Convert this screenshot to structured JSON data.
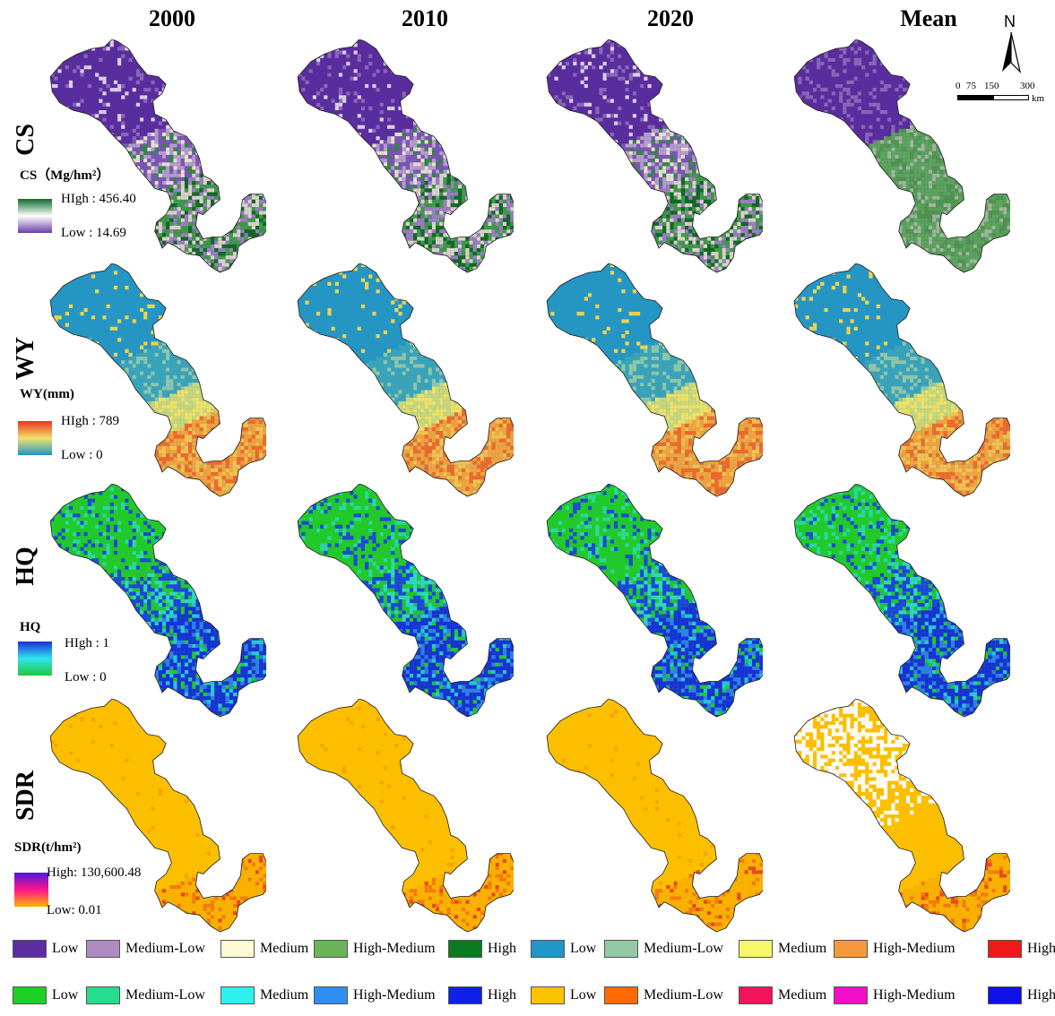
{
  "columns": [
    "2000",
    "2010",
    "2020",
    "Mean"
  ],
  "rows": [
    "CS",
    "WY",
    "HQ",
    "SDR"
  ],
  "legends": {
    "cs": {
      "title": "CS（Mg/hm²）",
      "high": "HIgh : 456.40",
      "low": "Low : 14.69",
      "colors": [
        "#0e6b2c",
        "#ffffff",
        "#6a3fa5"
      ]
    },
    "wy": {
      "title": "WY(mm)",
      "high": "HIgh : 789",
      "low": "Low : 0",
      "colors": [
        "#e8321e",
        "#f2e26a",
        "#1b97c6"
      ]
    },
    "hq": {
      "title": "HQ",
      "high": "HIgh : 1",
      "low": "Low : 0",
      "colors": [
        "#1b2fd4",
        "#2fe4f0",
        "#22c93a"
      ]
    },
    "sdr": {
      "title": "SDR(t/hm²)",
      "high": "High: 130,600.48",
      "low": "Low: 0.01",
      "colors": [
        "#4a1ad8",
        "#ff148c",
        "#ffb400"
      ]
    }
  },
  "north_arrow": "N",
  "scale_bar": {
    "ticks": [
      "0",
      "75",
      "150",
      "300"
    ],
    "unit": "km"
  },
  "classes": {
    "cs": [
      {
        "label": "Low",
        "color": "#5b2d9e"
      },
      {
        "label": "Medium-Low",
        "color": "#b08bc0"
      },
      {
        "label": "Medium",
        "color": "#fdfbd2"
      },
      {
        "label": "High-Medium",
        "color": "#6ab45a"
      },
      {
        "label": "High",
        "color": "#0b7a20"
      }
    ],
    "wy": [
      {
        "label": "Low",
        "color": "#1f97c9"
      },
      {
        "label": "Medium-Low",
        "color": "#94c9a6"
      },
      {
        "label": "Medium",
        "color": "#f7f76c"
      },
      {
        "label": "High-Medium",
        "color": "#f59a3c"
      },
      {
        "label": "High",
        "color": "#ee1a1a"
      }
    ],
    "hq": [
      {
        "label": "Low",
        "color": "#1ecf26"
      },
      {
        "label": "Medium-Low",
        "color": "#27dc8e"
      },
      {
        "label": "Medium",
        "color": "#2ff0ee"
      },
      {
        "label": "High-Medium",
        "color": "#2f8ef0"
      },
      {
        "label": "High",
        "color": "#0e21e8"
      }
    ],
    "sdr": [
      {
        "label": "Low",
        "color": "#fcc200"
      },
      {
        "label": "Medium-Low",
        "color": "#ff6a00"
      },
      {
        "label": "Medium",
        "color": "#f2145a"
      },
      {
        "label": "High-Medium",
        "color": "#f20fc8"
      },
      {
        "label": "High",
        "color": "#1010e8"
      }
    ]
  }
}
